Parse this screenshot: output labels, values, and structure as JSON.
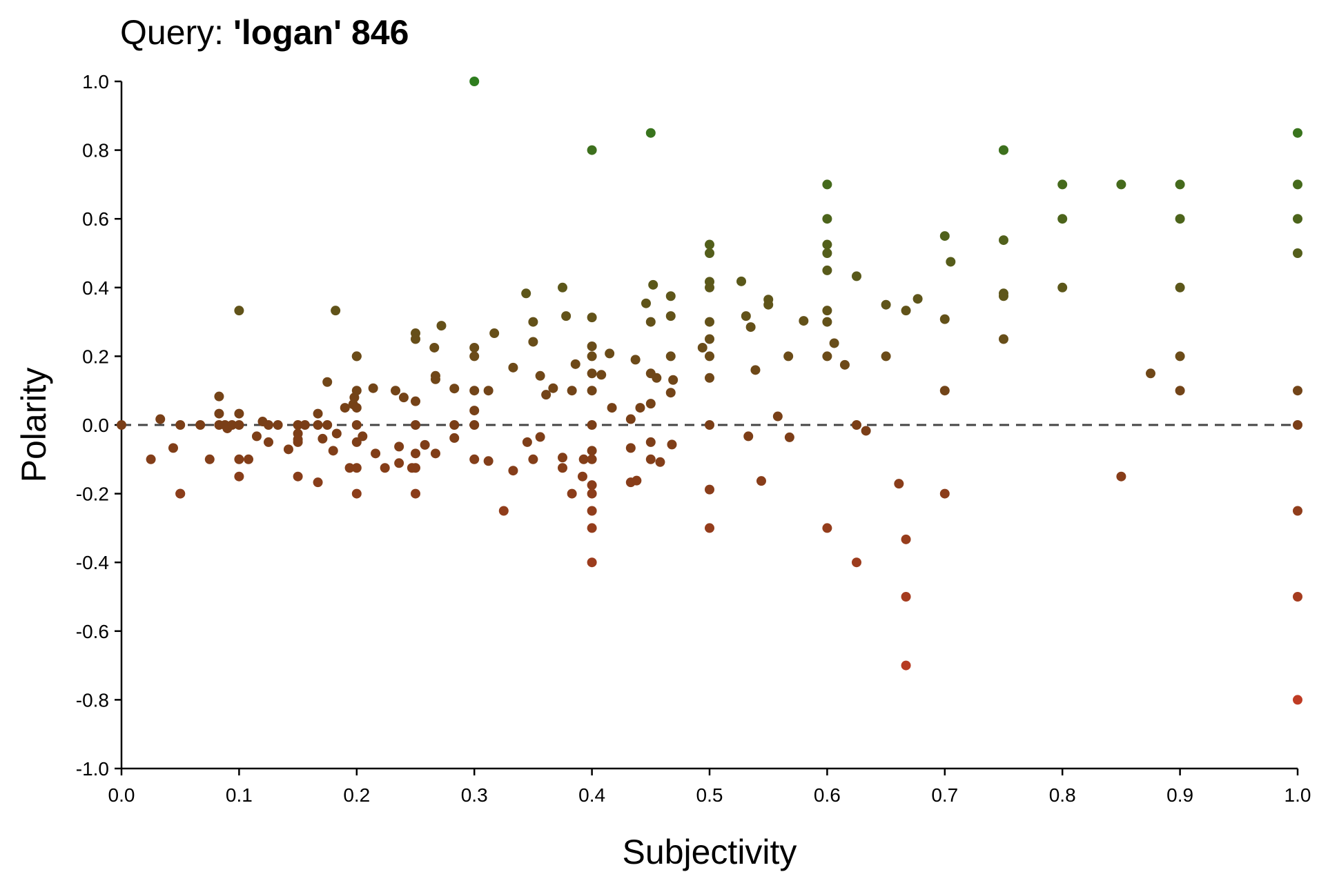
{
  "chart_data": {
    "type": "scatter",
    "title_prefix": "Query: ",
    "title_query": "'logan' 846",
    "xlabel": "Subjectivity",
    "ylabel": "Polarity",
    "xlim": [
      0,
      1
    ],
    "ylim": [
      -1,
      1
    ],
    "x_ticks": [
      "0.0",
      "0.1",
      "0.2",
      "0.3",
      "0.4",
      "0.5",
      "0.6",
      "0.7",
      "0.8",
      "0.9",
      "1.0"
    ],
    "y_ticks": [
      "1.0",
      "0.8",
      "0.6",
      "0.4",
      "0.2",
      "0.0",
      "-0.2",
      "-0.4",
      "-0.6",
      "-0.8",
      "-1.0"
    ],
    "reference_line": {
      "y": 0,
      "style": "dashed"
    },
    "colors": {
      "negative": "#d03a26",
      "neutral": "#7a3e17",
      "positive": "#2e7d1e"
    },
    "grid": false,
    "legend": "none",
    "points": [
      [
        0,
        0
      ],
      [
        0.025,
        -0.1
      ],
      [
        0.033,
        0.017
      ],
      [
        0.044,
        -0.067
      ],
      [
        0.05,
        0
      ],
      [
        0.05,
        -0.2
      ],
      [
        0.05,
        -0.2
      ],
      [
        0.067,
        0
      ],
      [
        0.075,
        -0.1
      ],
      [
        0.083,
        0.083
      ],
      [
        0.083,
        0.033
      ],
      [
        0.083,
        0
      ],
      [
        0.088,
        0
      ],
      [
        0.09,
        -0.01
      ],
      [
        0.094,
        0
      ],
      [
        0.1,
        0.333
      ],
      [
        0.1,
        0.033
      ],
      [
        0.1,
        0
      ],
      [
        0.1,
        -0.1
      ],
      [
        0.1,
        -0.15
      ],
      [
        0.108,
        -0.1
      ],
      [
        0.115,
        -0.033
      ],
      [
        0.12,
        0.01
      ],
      [
        0.125,
        -0.05
      ],
      [
        0.125,
        0
      ],
      [
        0.133,
        0
      ],
      [
        0.142,
        -0.071
      ],
      [
        0.15,
        0
      ],
      [
        0.15,
        -0.025
      ],
      [
        0.15,
        -0.042
      ],
      [
        0.15,
        -0.05
      ],
      [
        0.15,
        -0.15
      ],
      [
        0.156,
        0
      ],
      [
        0.167,
        0.033
      ],
      [
        0.167,
        0
      ],
      [
        0.167,
        -0.167
      ],
      [
        0.171,
        -0.04
      ],
      [
        0.175,
        0.125
      ],
      [
        0.175,
        0
      ],
      [
        0.18,
        -0.075
      ],
      [
        0.182,
        0.333
      ],
      [
        0.183,
        -0.025
      ],
      [
        0.19,
        0.05
      ],
      [
        0.194,
        -0.125
      ],
      [
        0.197,
        0.06
      ],
      [
        0.198,
        0.08
      ],
      [
        0.2,
        0.2
      ],
      [
        0.2,
        0.2
      ],
      [
        0.2,
        0.1
      ],
      [
        0.2,
        0.05
      ],
      [
        0.2,
        0
      ],
      [
        0.2,
        -0.05
      ],
      [
        0.2,
        -0.125
      ],
      [
        0.2,
        -0.2
      ],
      [
        0.205,
        -0.033
      ],
      [
        0.214,
        0.107
      ],
      [
        0.216,
        -0.083
      ],
      [
        0.224,
        -0.125
      ],
      [
        0.233,
        0.1
      ],
      [
        0.236,
        -0.063
      ],
      [
        0.236,
        -0.111
      ],
      [
        0.24,
        0.08
      ],
      [
        0.247,
        -0.125
      ],
      [
        0.25,
        0.267
      ],
      [
        0.25,
        0.25
      ],
      [
        0.25,
        0.069
      ],
      [
        0.25,
        0
      ],
      [
        0.25,
        -0.083
      ],
      [
        0.25,
        -0.125
      ],
      [
        0.25,
        -0.2
      ],
      [
        0.258,
        -0.058
      ],
      [
        0.266,
        0.225
      ],
      [
        0.267,
        0.143
      ],
      [
        0.267,
        0.133
      ],
      [
        0.267,
        -0.083
      ],
      [
        0.272,
        0.289
      ],
      [
        0.283,
        0.106
      ],
      [
        0.283,
        0
      ],
      [
        0.283,
        -0.038
      ],
      [
        0.3,
        1
      ],
      [
        0.3,
        0.225
      ],
      [
        0.3,
        0.2
      ],
      [
        0.3,
        0.1
      ],
      [
        0.3,
        0.042
      ],
      [
        0.3,
        0
      ],
      [
        0.3,
        -0.1
      ],
      [
        0.312,
        0.1
      ],
      [
        0.312,
        -0.105
      ],
      [
        0.317,
        0.267
      ],
      [
        0.325,
        -0.25
      ],
      [
        0.333,
        0.167
      ],
      [
        0.333,
        -0.133
      ],
      [
        0.344,
        0.383
      ],
      [
        0.345,
        -0.05
      ],
      [
        0.35,
        0.3
      ],
      [
        0.35,
        0.242
      ],
      [
        0.35,
        -0.1
      ],
      [
        0.356,
        0.143
      ],
      [
        0.356,
        -0.035
      ],
      [
        0.361,
        0.088
      ],
      [
        0.367,
        0.107
      ],
      [
        0.375,
        0.4
      ],
      [
        0.375,
        -0.095
      ],
      [
        0.375,
        -0.125
      ],
      [
        0.378,
        0.317
      ],
      [
        0.383,
        0.1
      ],
      [
        0.383,
        -0.2
      ],
      [
        0.386,
        0.177
      ],
      [
        0.392,
        -0.15
      ],
      [
        0.393,
        -0.1
      ],
      [
        0.4,
        0.8
      ],
      [
        0.4,
        0.313
      ],
      [
        0.4,
        0.229
      ],
      [
        0.4,
        0.2
      ],
      [
        0.4,
        0.15
      ],
      [
        0.4,
        0.1
      ],
      [
        0.4,
        0
      ],
      [
        0.4,
        -0.075
      ],
      [
        0.4,
        -0.1
      ],
      [
        0.4,
        -0.175
      ],
      [
        0.4,
        -0.2
      ],
      [
        0.4,
        -0.25
      ],
      [
        0.4,
        -0.3
      ],
      [
        0.4,
        -0.4
      ],
      [
        0.408,
        0.146
      ],
      [
        0.415,
        0.208
      ],
      [
        0.417,
        0.05
      ],
      [
        0.433,
        0.017
      ],
      [
        0.433,
        -0.067
      ],
      [
        0.433,
        -0.167
      ],
      [
        0.437,
        0.19
      ],
      [
        0.438,
        -0.162
      ],
      [
        0.441,
        0.05
      ],
      [
        0.446,
        0.354
      ],
      [
        0.45,
        0.85
      ],
      [
        0.45,
        0.3
      ],
      [
        0.45,
        0.15
      ],
      [
        0.45,
        0.062
      ],
      [
        0.45,
        -0.05
      ],
      [
        0.45,
        -0.1
      ],
      [
        0.452,
        0.408
      ],
      [
        0.455,
        0.137
      ],
      [
        0.458,
        -0.108
      ],
      [
        0.467,
        0.375
      ],
      [
        0.467,
        0.317
      ],
      [
        0.467,
        0.2
      ],
      [
        0.467,
        0.094
      ],
      [
        0.468,
        -0.057
      ],
      [
        0.469,
        0.131
      ],
      [
        0.494,
        0.225
      ],
      [
        0.5,
        0.525
      ],
      [
        0.5,
        0.5
      ],
      [
        0.5,
        0.417
      ],
      [
        0.5,
        0.4
      ],
      [
        0.5,
        0.3
      ],
      [
        0.5,
        0.25
      ],
      [
        0.5,
        0.2
      ],
      [
        0.5,
        0.137
      ],
      [
        0.5,
        0
      ],
      [
        0.5,
        -0.188
      ],
      [
        0.5,
        -0.3
      ],
      [
        0.527,
        0.418
      ],
      [
        0.531,
        0.317
      ],
      [
        0.533,
        -0.033
      ],
      [
        0.535,
        0.285
      ],
      [
        0.539,
        0.16
      ],
      [
        0.544,
        -0.163
      ],
      [
        0.55,
        0.365
      ],
      [
        0.55,
        0.35
      ],
      [
        0.558,
        0.025
      ],
      [
        0.567,
        0.2
      ],
      [
        0.568,
        -0.036
      ],
      [
        0.58,
        0.303
      ],
      [
        0.6,
        0.7
      ],
      [
        0.6,
        0.6
      ],
      [
        0.6,
        0.525
      ],
      [
        0.6,
        0.5
      ],
      [
        0.6,
        0.45
      ],
      [
        0.6,
        0.333
      ],
      [
        0.6,
        0.3
      ],
      [
        0.6,
        0.2
      ],
      [
        0.6,
        -0.3
      ],
      [
        0.606,
        0.238
      ],
      [
        0.615,
        0.175
      ],
      [
        0.625,
        0.433
      ],
      [
        0.625,
        0
      ],
      [
        0.625,
        -0.4
      ],
      [
        0.633,
        -0.017
      ],
      [
        0.65,
        0.35
      ],
      [
        0.65,
        0.2
      ],
      [
        0.661,
        -0.171
      ],
      [
        0.667,
        0.333
      ],
      [
        0.667,
        -0.333
      ],
      [
        0.667,
        -0.5
      ],
      [
        0.667,
        -0.7
      ],
      [
        0.677,
        0.367
      ],
      [
        0.7,
        0.55
      ],
      [
        0.7,
        0.308
      ],
      [
        0.7,
        0.1
      ],
      [
        0.7,
        -0.2
      ],
      [
        0.705,
        0.475
      ],
      [
        0.75,
        0.8
      ],
      [
        0.75,
        0.8
      ],
      [
        0.75,
        0.538
      ],
      [
        0.75,
        0.383
      ],
      [
        0.75,
        0.375
      ],
      [
        0.75,
        0.25
      ],
      [
        0.8,
        0.7
      ],
      [
        0.8,
        0.6
      ],
      [
        0.8,
        0.4
      ],
      [
        0.85,
        0.7
      ],
      [
        0.85,
        -0.15
      ],
      [
        0.875,
        0.15
      ],
      [
        0.9,
        0.7
      ],
      [
        0.9,
        0.6
      ],
      [
        0.9,
        0.4
      ],
      [
        0.9,
        0.2
      ],
      [
        0.9,
        0.1
      ],
      [
        1,
        0.85
      ],
      [
        1,
        0.7
      ],
      [
        1,
        0.6
      ],
      [
        1,
        0.5
      ],
      [
        1,
        0.1
      ],
      [
        1,
        0
      ],
      [
        1,
        -0.25
      ],
      [
        1,
        -0.5
      ],
      [
        1,
        -0.8
      ]
    ]
  }
}
